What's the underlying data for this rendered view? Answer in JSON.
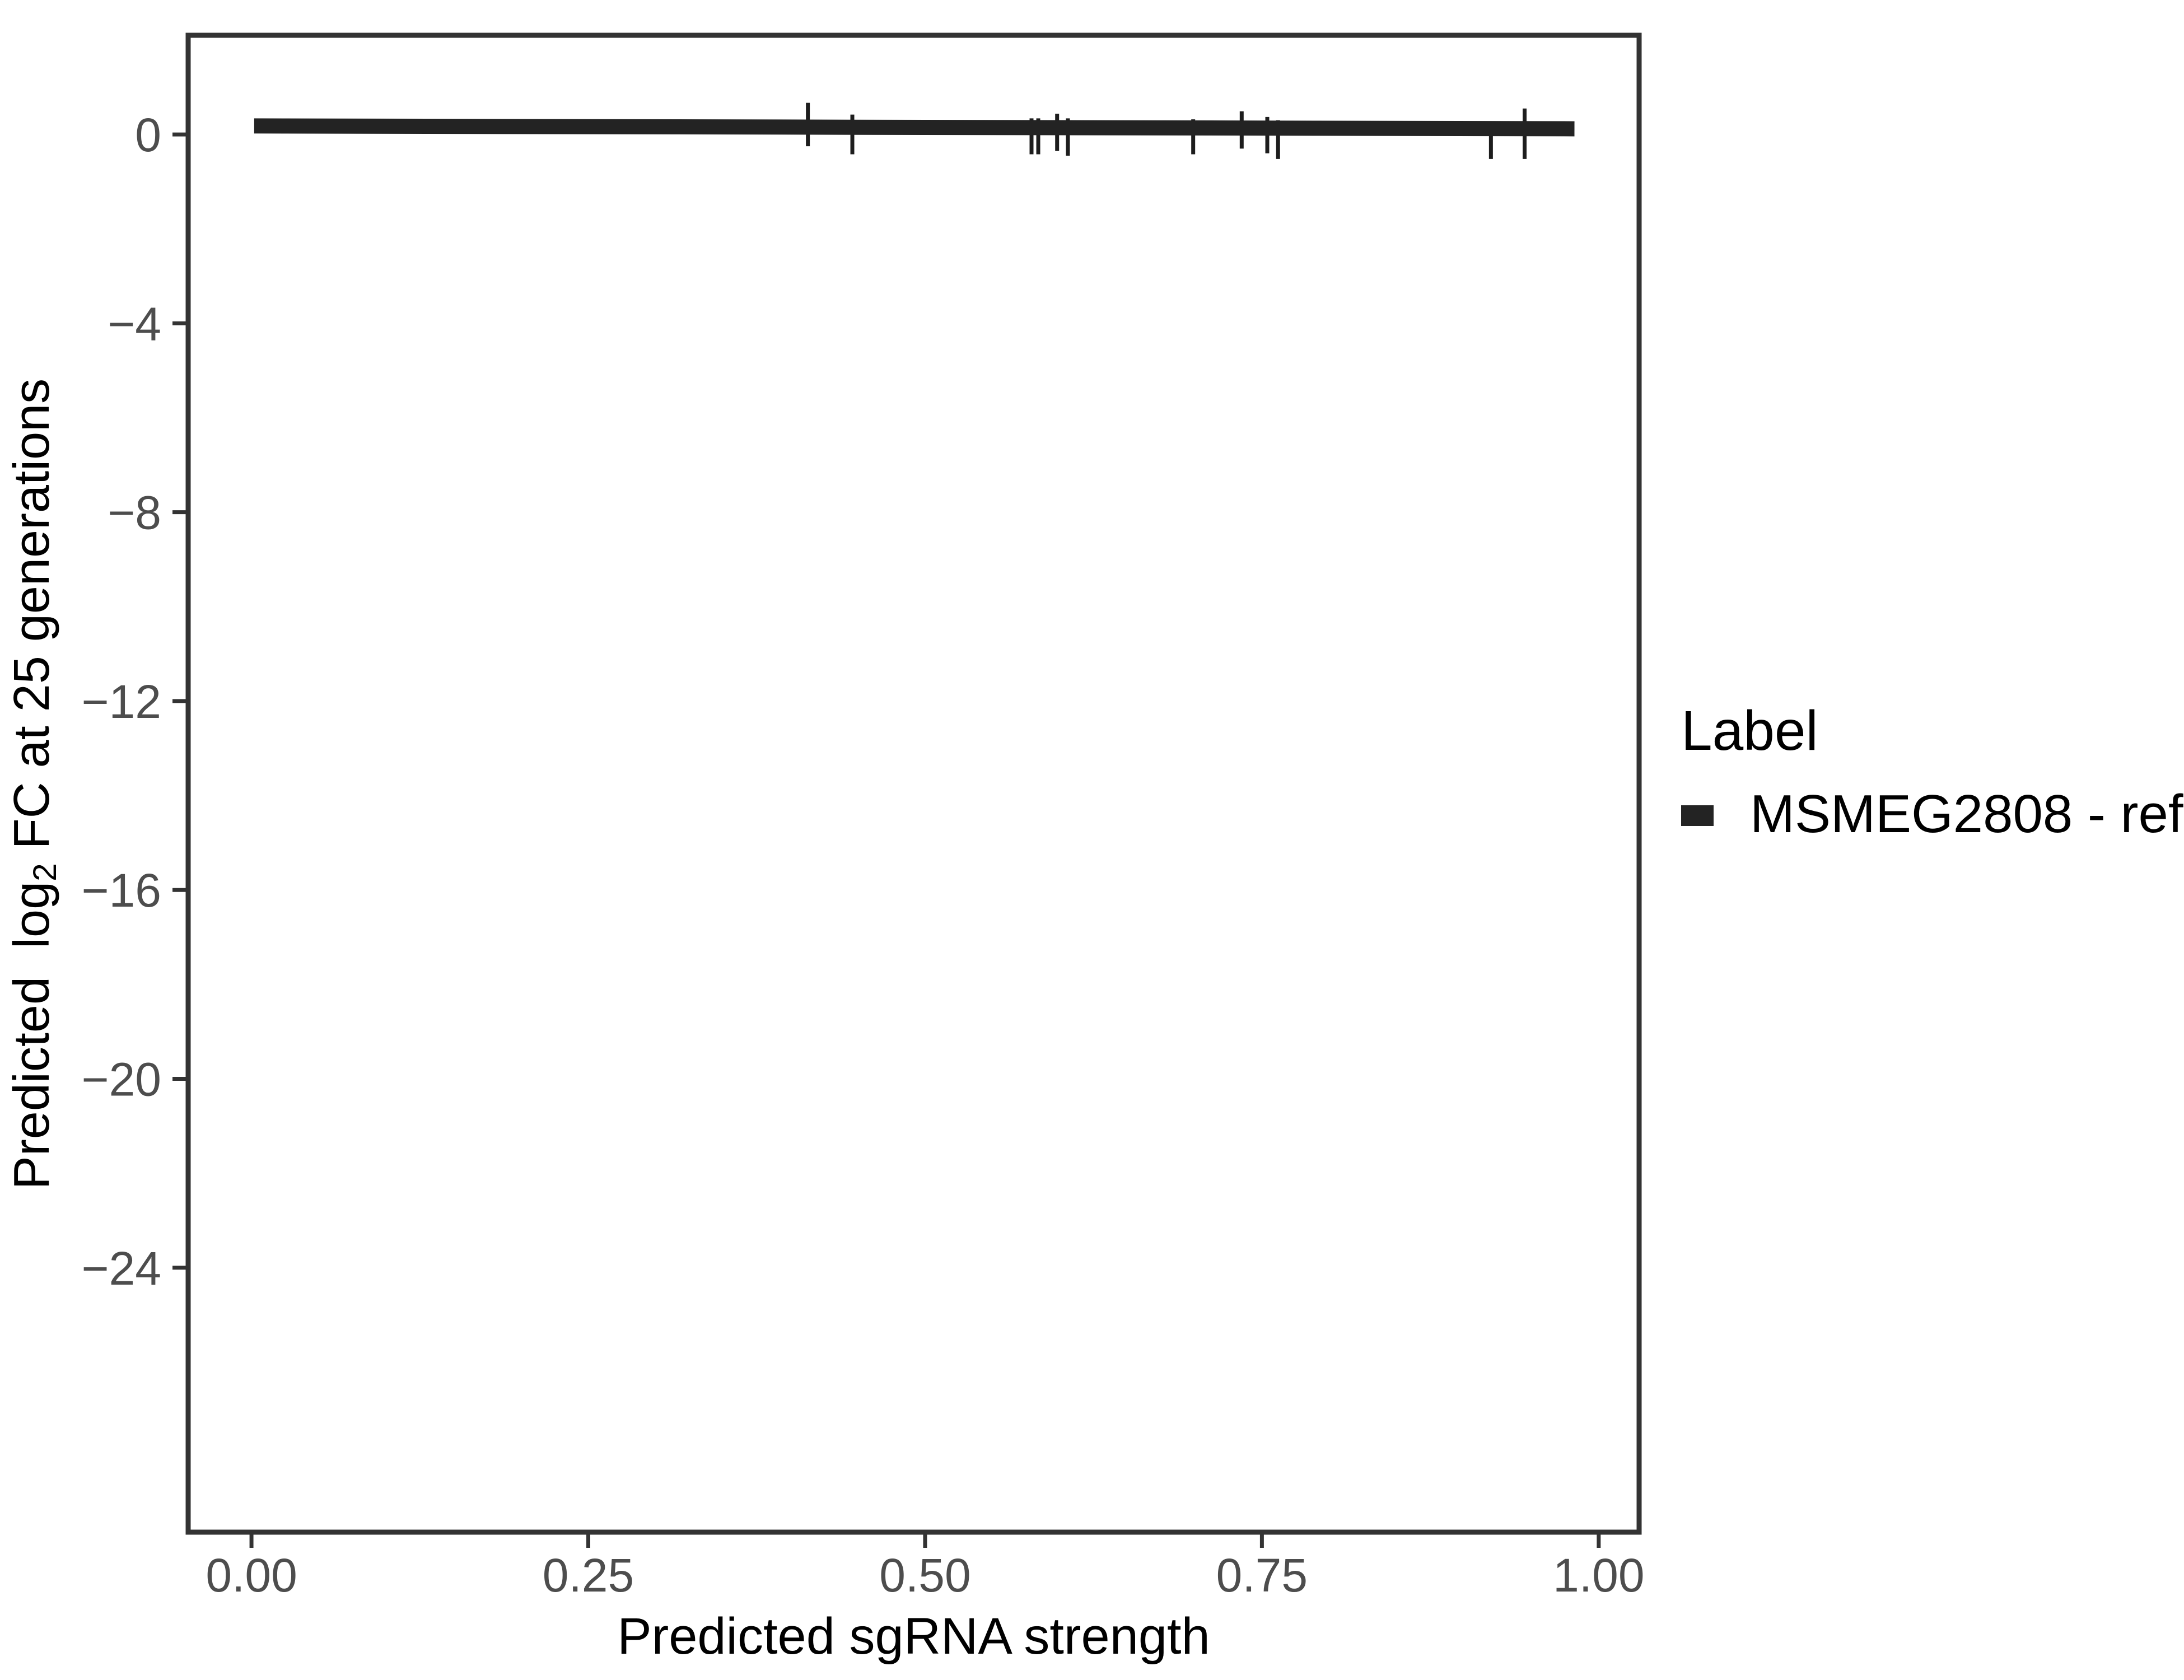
{
  "colors": {
    "background": "#FFFFFF",
    "panel_border": "#333333",
    "tick_mark": "#333333",
    "tick_text": "#4D4D4D",
    "text": "#000000",
    "series_line": "#232323",
    "error_bar": "#1D1D1D"
  },
  "chart_data": {
    "type": "line",
    "title": "",
    "xlabel": "Predicted sgRNA strength",
    "ylabel_text": "Predicted log2 FC at 25 generations",
    "ylabel_parts": {
      "pre": "Predicted  log",
      "sub": "2",
      "post": " FC at 25 generations"
    },
    "xlim": [
      -0.047,
      1.03
    ],
    "ylim": [
      -29.6,
      2.1
    ],
    "x_ticks": [
      0.0,
      0.25,
      0.5,
      0.75,
      1.0
    ],
    "x_tick_labels": [
      "0.00",
      "0.25",
      "0.50",
      "0.75",
      "1.00"
    ],
    "y_ticks": [
      0,
      -4,
      -8,
      -12,
      -16,
      -20,
      -24
    ],
    "y_tick_labels": [
      "0",
      "−4",
      "−8",
      "−12",
      "−16",
      "−20",
      "−24"
    ],
    "grid": false,
    "legend": {
      "title": "Label",
      "position": "right",
      "entries": [
        {
          "label": "MSMEG2808 - ref",
          "color": "#232323",
          "key": "thick-line-swatch"
        }
      ]
    },
    "series": [
      {
        "name": "MSMEG2808 - ref",
        "kind": "thick-line",
        "x_start": 0.002,
        "x_end": 0.982,
        "y_start": 0.18,
        "y_end": 0.12,
        "thickness_units": 0.32,
        "color": "#232323"
      }
    ],
    "error_bars": [
      {
        "x": 0.413,
        "ymin": -0.25,
        "ymax": 0.67
      },
      {
        "x": 0.446,
        "ymin": -0.42,
        "ymax": 0.42
      },
      {
        "x": 0.579,
        "ymin": -0.42,
        "ymax": 0.34
      },
      {
        "x": 0.584,
        "ymin": -0.42,
        "ymax": 0.34
      },
      {
        "x": 0.598,
        "ymin": -0.35,
        "ymax": 0.44
      },
      {
        "x": 0.606,
        "ymin": -0.45,
        "ymax": 0.34
      },
      {
        "x": 0.699,
        "ymin": -0.42,
        "ymax": 0.32
      },
      {
        "x": 0.735,
        "ymin": -0.3,
        "ymax": 0.49
      },
      {
        "x": 0.754,
        "ymin": -0.4,
        "ymax": 0.37
      },
      {
        "x": 0.762,
        "ymin": -0.52,
        "ymax": 0.3
      },
      {
        "x": 0.92,
        "ymin": -0.52,
        "ymax": 0.25
      },
      {
        "x": 0.945,
        "ymin": -0.52,
        "ymax": 0.55
      }
    ]
  }
}
